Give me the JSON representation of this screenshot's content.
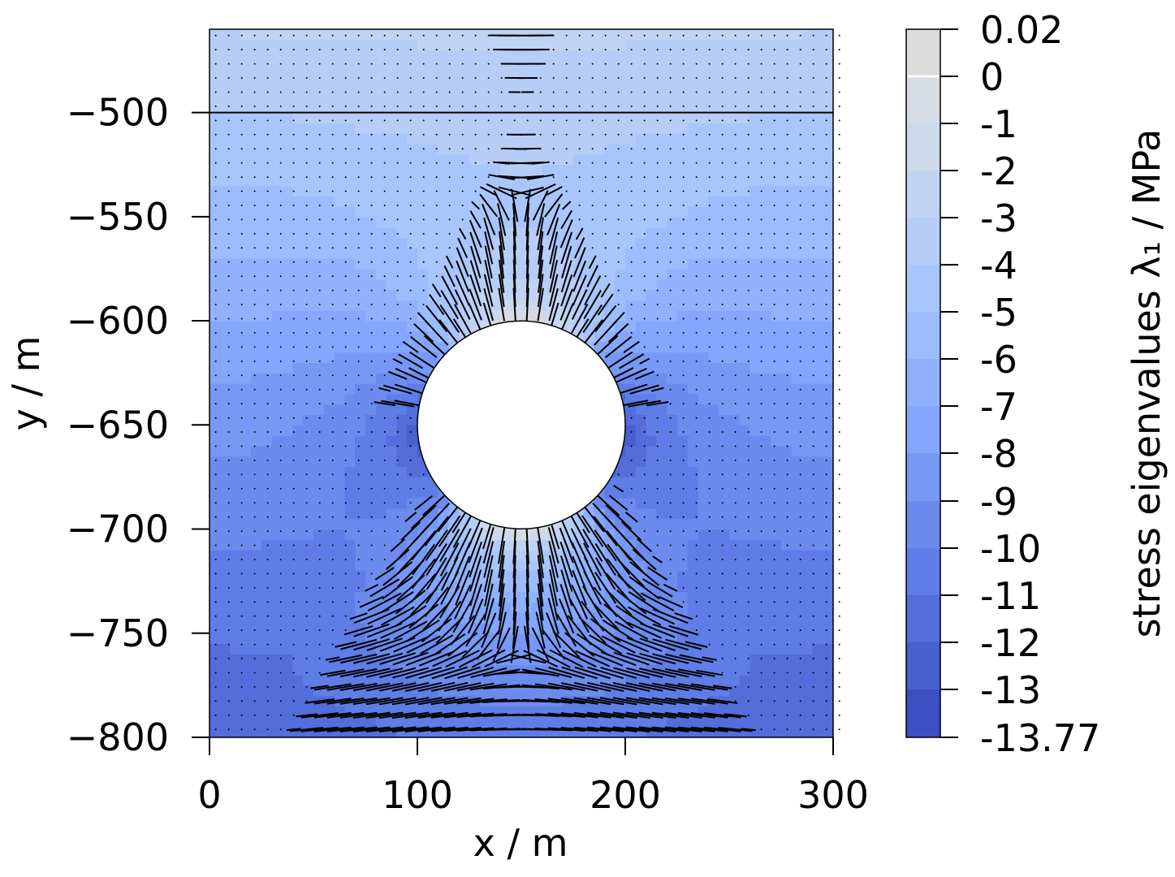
{
  "chart_data": {
    "type": "heatmap",
    "subtype": "filled contour with principal stress direction ticks",
    "xlabel": "x / m",
    "ylabel": "y / m",
    "xlim": [
      0,
      300
    ],
    "ylim": [
      -800,
      -460
    ],
    "x_ticks": [
      0,
      100,
      200,
      300
    ],
    "x_tick_labels": [
      "0",
      "100",
      "200",
      "300"
    ],
    "y_ticks": [
      -500,
      -550,
      -600,
      -650,
      -700,
      -750,
      -800
    ],
    "y_tick_labels": [
      "−500",
      "−550",
      "−600",
      "−650",
      "−700",
      "−750",
      "−800"
    ],
    "cavity": {
      "center_x": 150,
      "center_y": -650,
      "radius": 50
    },
    "horizontal_line_y": -500,
    "colorbar": {
      "title": "stress eigenvalues λ₁ / MPa",
      "levels": [
        0.02,
        0,
        -1,
        -2,
        -3,
        -4,
        -5,
        -6,
        -7,
        -8,
        -9,
        -10,
        -11,
        -12,
        -13,
        -13.77
      ],
      "level_labels": [
        "0.02",
        "0",
        "-1",
        "-2",
        "-3",
        "-4",
        "-5",
        "-6",
        "-7",
        "-8",
        "-9",
        "-10",
        "-11",
        "-12",
        "-13",
        "-13.77"
      ],
      "colors": [
        "#dcdcdc",
        "#d6dbe4",
        "#cdd8eb",
        "#c1d3f3",
        "#b6cdf8",
        "#a9c6fc",
        "#9dbcfe",
        "#90b2fe",
        "#84a6fc",
        "#7799f6",
        "#6b8bee",
        "#5e7de6",
        "#536ddb",
        "#4660d0",
        "#3d50c3"
      ],
      "range": [
        -13.77,
        0.02
      ]
    },
    "field_summary": {
      "value_at_cavity_crown_and_floor": 0,
      "value_at_cavity_sides": -12.5,
      "value_at_top": -3,
      "value_at_bottom": -12
    }
  }
}
